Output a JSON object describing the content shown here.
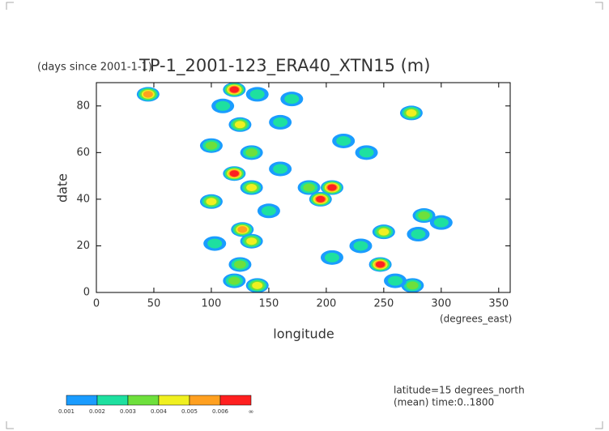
{
  "chart_data": {
    "type": "contour",
    "title": "TP-1_2001-123_ERA40_XTN15 (m)",
    "y_units": "(days since 2001-1-1)",
    "x_label": "longitude",
    "x_units": "(degrees_east)",
    "y_label": "date",
    "xlim": [
      0,
      360
    ],
    "xticks": [
      0,
      50,
      100,
      150,
      200,
      250,
      300,
      350
    ],
    "ylim": [
      0,
      90
    ],
    "yticks": [
      0,
      20,
      40,
      60,
      80
    ],
    "notes": [
      "latitude=15 degrees_north",
      "(mean) time:0..1800"
    ],
    "levels": [
      0.001,
      0.002,
      0.003,
      0.004,
      0.005,
      0.006
    ],
    "top_level_label": "∞",
    "level_colors": [
      "#1a9cff",
      "#1ee0a0",
      "#6ee03c",
      "#f0f020",
      "#ffa020",
      "#ff2020"
    ],
    "blobs": [
      {
        "x": 120,
        "y": 87,
        "v": 0.006
      },
      {
        "x": 45,
        "y": 85,
        "v": 0.005
      },
      {
        "x": 125,
        "y": 72,
        "v": 0.004
      },
      {
        "x": 120,
        "y": 51,
        "v": 0.006
      },
      {
        "x": 135,
        "y": 45,
        "v": 0.004
      },
      {
        "x": 127,
        "y": 27,
        "v": 0.005
      },
      {
        "x": 135,
        "y": 22,
        "v": 0.004
      },
      {
        "x": 140,
        "y": 3,
        "v": 0.004
      },
      {
        "x": 125,
        "y": 12,
        "v": 0.003
      },
      {
        "x": 205,
        "y": 45,
        "v": 0.006
      },
      {
        "x": 195,
        "y": 40,
        "v": 0.006
      },
      {
        "x": 185,
        "y": 45,
        "v": 0.003
      },
      {
        "x": 247,
        "y": 12,
        "v": 0.006
      },
      {
        "x": 250,
        "y": 26,
        "v": 0.004
      },
      {
        "x": 274,
        "y": 77,
        "v": 0.004
      },
      {
        "x": 285,
        "y": 33,
        "v": 0.003
      },
      {
        "x": 280,
        "y": 25,
        "v": 0.002
      },
      {
        "x": 275,
        "y": 3,
        "v": 0.003
      },
      {
        "x": 100,
        "y": 63,
        "v": 0.003
      },
      {
        "x": 100,
        "y": 39,
        "v": 0.004
      },
      {
        "x": 103,
        "y": 21,
        "v": 0.002
      },
      {
        "x": 135,
        "y": 60,
        "v": 0.003
      },
      {
        "x": 160,
        "y": 53,
        "v": 0.002
      },
      {
        "x": 160,
        "y": 73,
        "v": 0.002
      },
      {
        "x": 170,
        "y": 83,
        "v": 0.002
      },
      {
        "x": 110,
        "y": 80,
        "v": 0.002
      },
      {
        "x": 140,
        "y": 85,
        "v": 0.002
      },
      {
        "x": 235,
        "y": 60,
        "v": 0.002
      },
      {
        "x": 205,
        "y": 15,
        "v": 0.002
      },
      {
        "x": 215,
        "y": 65,
        "v": 0.002
      },
      {
        "x": 300,
        "y": 30,
        "v": 0.002
      },
      {
        "x": 150,
        "y": 35,
        "v": 0.002
      },
      {
        "x": 230,
        "y": 20,
        "v": 0.002
      },
      {
        "x": 260,
        "y": 5,
        "v": 0.002
      },
      {
        "x": 120,
        "y": 5,
        "v": 0.003
      }
    ]
  }
}
